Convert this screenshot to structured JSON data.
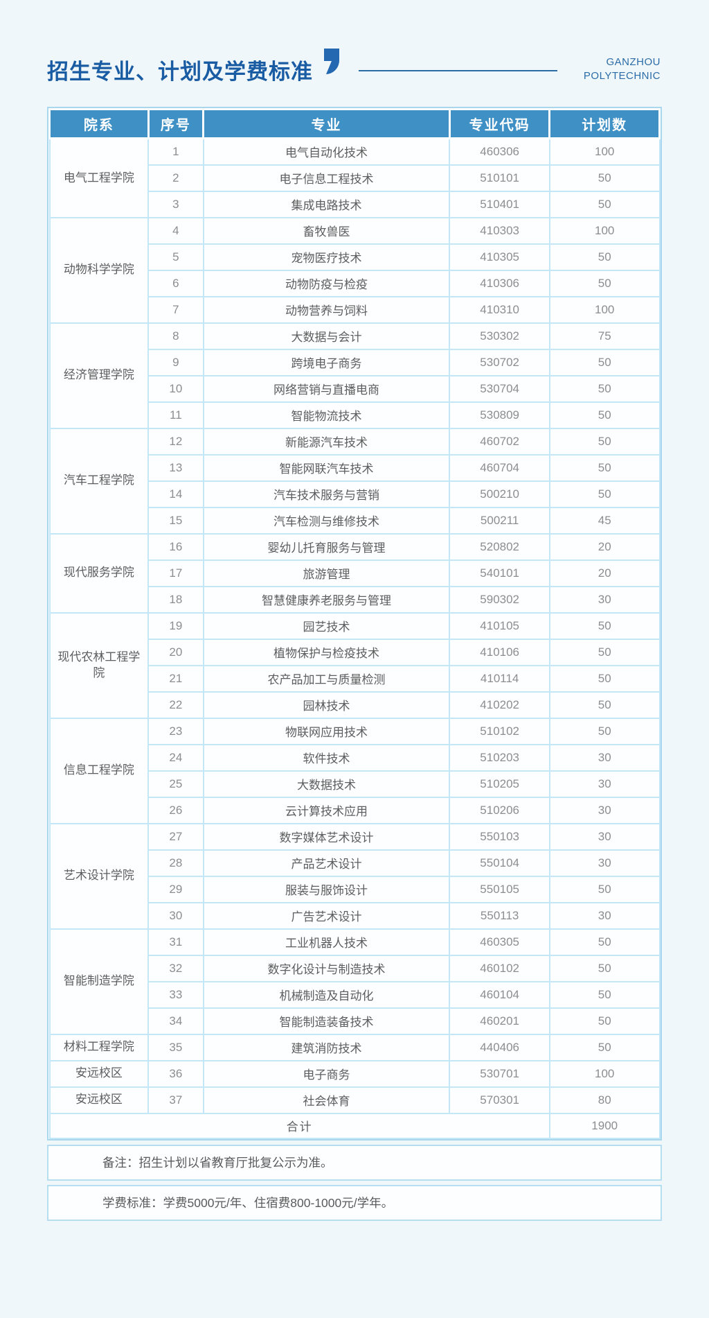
{
  "page_title": "招生专业、计划及学费标准",
  "brand": {
    "line1": "GANZHOU",
    "line2": "POLYTECHNIC"
  },
  "colors": {
    "page_bg": "#f0f7fa",
    "header_blue": "#3e90c5",
    "title_blue": "#1a5ca3",
    "brand_blue": "#2b6ca8",
    "border_light_blue": "#c3e7f6",
    "outer_border_blue": "#a9d8ee",
    "text_dark": "#5d5d5d",
    "text_num": "#8d8d8d"
  },
  "table": {
    "headers": [
      "院系",
      "序号",
      "专业",
      "专业代码",
      "计划数"
    ],
    "groups": [
      {
        "department": "电气工程学院",
        "rows": [
          {
            "no": "1",
            "major": "电气自动化技术",
            "code": "460306",
            "plan": "100"
          },
          {
            "no": "2",
            "major": "电子信息工程技术",
            "code": "510101",
            "plan": "50"
          },
          {
            "no": "3",
            "major": "集成电路技术",
            "code": "510401",
            "plan": "50"
          }
        ]
      },
      {
        "department": "动物科学学院",
        "rows": [
          {
            "no": "4",
            "major": "畜牧兽医",
            "code": "410303",
            "plan": "100"
          },
          {
            "no": "5",
            "major": "宠物医疗技术",
            "code": "410305",
            "plan": "50"
          },
          {
            "no": "6",
            "major": "动物防疫与检疫",
            "code": "410306",
            "plan": "50"
          },
          {
            "no": "7",
            "major": "动物营养与饲料",
            "code": "410310",
            "plan": "100"
          }
        ]
      },
      {
        "department": "经济管理学院",
        "rows": [
          {
            "no": "8",
            "major": "大数据与会计",
            "code": "530302",
            "plan": "75"
          },
          {
            "no": "9",
            "major": "跨境电子商务",
            "code": "530702",
            "plan": "50"
          },
          {
            "no": "10",
            "major": "网络营销与直播电商",
            "code": "530704",
            "plan": "50"
          },
          {
            "no": "11",
            "major": "智能物流技术",
            "code": "530809",
            "plan": "50"
          }
        ]
      },
      {
        "department": "汽车工程学院",
        "rows": [
          {
            "no": "12",
            "major": "新能源汽车技术",
            "code": "460702",
            "plan": "50"
          },
          {
            "no": "13",
            "major": "智能网联汽车技术",
            "code": "460704",
            "plan": "50"
          },
          {
            "no": "14",
            "major": "汽车技术服务与营销",
            "code": "500210",
            "plan": "50"
          },
          {
            "no": "15",
            "major": "汽车检测与维修技术",
            "code": "500211",
            "plan": "45"
          }
        ]
      },
      {
        "department": "现代服务学院",
        "rows": [
          {
            "no": "16",
            "major": "婴幼儿托育服务与管理",
            "code": "520802",
            "plan": "20"
          },
          {
            "no": "17",
            "major": "旅游管理",
            "code": "540101",
            "plan": "20"
          },
          {
            "no": "18",
            "major": "智慧健康养老服务与管理",
            "code": "590302",
            "plan": "30"
          }
        ]
      },
      {
        "department": "现代农林工程学院",
        "rows": [
          {
            "no": "19",
            "major": "园艺技术",
            "code": "410105",
            "plan": "50"
          },
          {
            "no": "20",
            "major": "植物保护与检疫技术",
            "code": "410106",
            "plan": "50"
          },
          {
            "no": "21",
            "major": "农产品加工与质量检测",
            "code": "410114",
            "plan": "50"
          },
          {
            "no": "22",
            "major": "园林技术",
            "code": "410202",
            "plan": "50"
          }
        ]
      },
      {
        "department": "信息工程学院",
        "rows": [
          {
            "no": "23",
            "major": "物联网应用技术",
            "code": "510102",
            "plan": "50"
          },
          {
            "no": "24",
            "major": "软件技术",
            "code": "510203",
            "plan": "30"
          },
          {
            "no": "25",
            "major": "大数据技术",
            "code": "510205",
            "plan": "30"
          },
          {
            "no": "26",
            "major": "云计算技术应用",
            "code": "510206",
            "plan": "30"
          }
        ]
      },
      {
        "department": "艺术设计学院",
        "rows": [
          {
            "no": "27",
            "major": "数字媒体艺术设计",
            "code": "550103",
            "plan": "30"
          },
          {
            "no": "28",
            "major": "产品艺术设计",
            "code": "550104",
            "plan": "30"
          },
          {
            "no": "29",
            "major": "服装与服饰设计",
            "code": "550105",
            "plan": "50"
          },
          {
            "no": "30",
            "major": "广告艺术设计",
            "code": "550113",
            "plan": "30"
          }
        ]
      },
      {
        "department": "智能制造学院",
        "rows": [
          {
            "no": "31",
            "major": "工业机器人技术",
            "code": "460305",
            "plan": "50"
          },
          {
            "no": "32",
            "major": "数字化设计与制造技术",
            "code": "460102",
            "plan": "50"
          },
          {
            "no": "33",
            "major": "机械制造及自动化",
            "code": "460104",
            "plan": "50"
          },
          {
            "no": "34",
            "major": "智能制造装备技术",
            "code": "460201",
            "plan": "50"
          }
        ]
      },
      {
        "department": "材料工程学院",
        "rows": [
          {
            "no": "35",
            "major": "建筑消防技术",
            "code": "440406",
            "plan": "50"
          }
        ]
      },
      {
        "department": "安远校区",
        "rows": [
          {
            "no": "36",
            "major": "电子商务",
            "code": "530701",
            "plan": "100"
          }
        ]
      },
      {
        "department": "安远校区",
        "rows": [
          {
            "no": "37",
            "major": "社会体育",
            "code": "570301",
            "plan": "80"
          }
        ]
      }
    ],
    "total": {
      "label": "合计",
      "value": "1900"
    }
  },
  "notes": [
    "备注：招生计划以省教育厅批复公示为准。",
    "学费标准：学费5000元/年、住宿费800-1000元/学年。"
  ]
}
